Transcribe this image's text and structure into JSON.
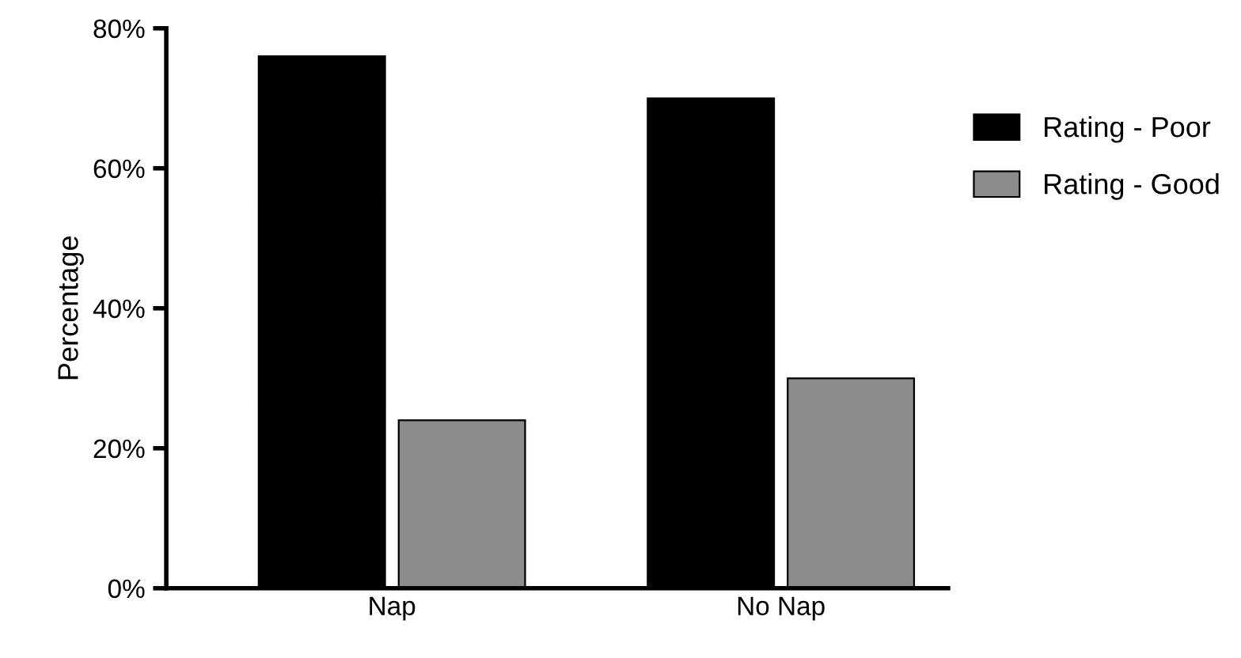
{
  "chart_data": {
    "type": "bar",
    "ylabel": "Percentage",
    "categories": [
      "Nap",
      "No Nap"
    ],
    "series": [
      {
        "name": "Rating - Poor",
        "color": "#000000",
        "values": [
          76,
          70
        ]
      },
      {
        "name": "Rating - Good",
        "color": "#8c8c8c",
        "values": [
          24,
          30
        ]
      }
    ],
    "ylim": [
      0,
      80
    ],
    "yticks": [
      {
        "value": 0,
        "label": "0%"
      },
      {
        "value": 20,
        "label": "20%"
      },
      {
        "value": 40,
        "label": "40%"
      },
      {
        "value": 60,
        "label": "60%"
      },
      {
        "value": 80,
        "label": "80%"
      }
    ],
    "grid": false,
    "legend": "right"
  }
}
